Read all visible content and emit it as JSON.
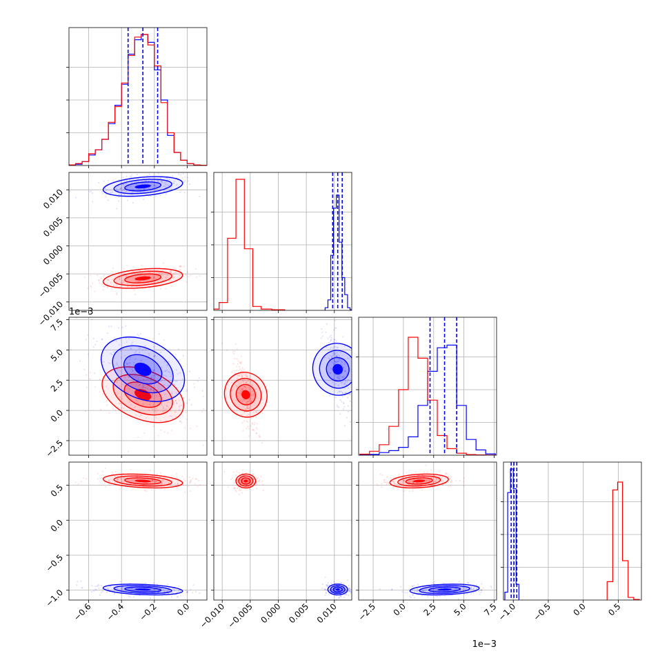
{
  "chart_data": {
    "type": "corner",
    "series": [
      {
        "name": "",
        "color": "#0000ff"
      },
      {
        "name": "",
        "color": "#ff0000"
      }
    ],
    "parameters": [
      {
        "range": [
          -0.72,
          0.12
        ],
        "ticks": [
          -0.6,
          -0.4,
          -0.2,
          0.0
        ],
        "tick_labels": [
          "−0.6",
          "−0.4",
          "−0.2",
          "0.0"
        ],
        "offset_text": ""
      },
      {
        "range": [
          -0.0115,
          0.0131
        ],
        "ticks": [
          -0.01,
          -0.005,
          0.0,
          0.005,
          0.01
        ],
        "tick_labels": [
          "−0.010",
          "−0.005",
          "0.000",
          "0.005",
          "0.010"
        ],
        "offset_text": ""
      },
      {
        "range": [
          -0.0037,
          0.0077
        ],
        "ticks": [
          -0.0025,
          0.0,
          0.0025,
          0.005,
          0.0075
        ],
        "tick_labels": [
          "−2.5",
          "0.0",
          "2.5",
          "5.0",
          "7.5"
        ],
        "offset_text": "1e−3"
      },
      {
        "range": [
          -1.14,
          0.83
        ],
        "ticks": [
          -1.0,
          -0.5,
          0.0,
          0.5
        ],
        "tick_labels": [
          "−1.0",
          "−0.5",
          "0.0",
          "0.5"
        ],
        "offset_text": ""
      }
    ],
    "marginals": [
      {
        "param": 0,
        "quantiles_blue": [
          -0.36,
          -0.27,
          -0.18
        ],
        "blue": {
          "centers": [
            -0.7,
            -0.66,
            -0.62,
            -0.58,
            -0.54,
            -0.5,
            -0.46,
            -0.42,
            -0.38,
            -0.34,
            -0.3,
            -0.26,
            -0.22,
            -0.18,
            -0.14,
            -0.1,
            -0.06,
            -0.02,
            0.02,
            0.06,
            0.1
          ],
          "heights": [
            0.005,
            0.01,
            0.03,
            0.08,
            0.12,
            0.2,
            0.32,
            0.46,
            0.62,
            0.85,
            0.96,
            1.0,
            0.94,
            0.73,
            0.5,
            0.23,
            0.1,
            0.04,
            0.015,
            0.005,
            0.002
          ]
        },
        "red": {
          "centers": [
            -0.7,
            -0.66,
            -0.62,
            -0.58,
            -0.54,
            -0.5,
            -0.46,
            -0.42,
            -0.38,
            -0.34,
            -0.3,
            -0.26,
            -0.22,
            -0.18,
            -0.14,
            -0.1,
            -0.06,
            -0.02,
            0.02,
            0.06,
            0.1
          ],
          "heights": [
            0.005,
            0.015,
            0.03,
            0.09,
            0.12,
            0.2,
            0.33,
            0.45,
            0.63,
            0.84,
            0.98,
            1.0,
            0.92,
            0.76,
            0.48,
            0.25,
            0.1,
            0.04,
            0.015,
            0.005,
            0.002
          ]
        }
      },
      {
        "param": 1,
        "quantiles_blue": [
          0.0097,
          0.0106,
          0.0114
        ],
        "blue": {
          "centers": [
            0.0086,
            0.0091,
            0.0096,
            0.0101,
            0.0106,
            0.0111,
            0.0116,
            0.0121,
            0.0126,
            0.013
          ],
          "heights": [
            0.02,
            0.08,
            0.42,
            0.78,
            0.88,
            0.52,
            0.25,
            0.12,
            0.02,
            0.005
          ]
        },
        "red": {
          "centers": [
            -0.0113,
            -0.0098,
            -0.0083,
            -0.0068,
            -0.0053,
            -0.0038,
            -0.0023,
            0.0
          ],
          "heights": [
            0.01,
            0.06,
            0.55,
            1.0,
            0.47,
            0.03,
            0.01,
            0.005
          ]
        }
      },
      {
        "param": 2,
        "quantiles_blue": [
          0.0022,
          0.0034,
          0.0044
        ],
        "blue": {
          "centers": [
            -0.0032,
            -0.0024,
            -0.0016,
            -0.0008,
            0.0,
            0.0008,
            0.0016,
            0.0024,
            0.0032,
            0.004,
            0.0048,
            0.0056,
            0.0064,
            0.0072
          ],
          "heights": [
            0.003,
            0.006,
            0.02,
            0.035,
            0.06,
            0.14,
            0.38,
            0.64,
            0.82,
            0.84,
            0.38,
            0.12,
            0.04,
            0.01
          ]
        },
        "red": {
          "centers": [
            -0.0032,
            -0.0024,
            -0.0016,
            -0.0008,
            0.0,
            0.0008,
            0.0016,
            0.0024,
            0.0032,
            0.004,
            0.0048,
            0.0056,
            0.0064,
            0.0072
          ],
          "heights": [
            0.008,
            0.03,
            0.08,
            0.22,
            0.5,
            0.9,
            0.74,
            0.42,
            0.15,
            0.05,
            0.015,
            0.005,
            0.002,
            0.001
          ]
        }
      },
      {
        "param": 3,
        "quantiles_blue": [
          -1.03,
          -0.99,
          -0.95
        ],
        "blue": {
          "centers": [
            -1.1,
            -1.06,
            -1.02,
            -0.98,
            -0.94
          ],
          "heights": [
            0.06,
            0.82,
            1.0,
            0.85,
            0.12
          ]
        },
        "red": {
          "centers": [
            0.38,
            0.46,
            0.52,
            0.6,
            0.68,
            0.76
          ],
          "heights": [
            0.14,
            0.84,
            0.9,
            0.3,
            0.02,
            0.005
          ]
        }
      }
    ],
    "joint_centers": {
      "blue": [
        -0.27,
        0.0106,
        0.0034,
        -0.99
      ],
      "red": [
        -0.27,
        -0.0058,
        0.0013,
        0.56
      ]
    },
    "joint_spreads": {
      "blue": [
        0.11,
        0.0008,
        0.0013,
        0.035
      ],
      "red": [
        0.11,
        0.0008,
        0.0011,
        0.045
      ]
    },
    "joint_tilt": {
      "0-1": 0.35,
      "0-2": -0.55,
      "1-2": -0.7,
      "0-3": -0.3,
      "1-3": 0.0,
      "2-3": 0.25
    }
  }
}
